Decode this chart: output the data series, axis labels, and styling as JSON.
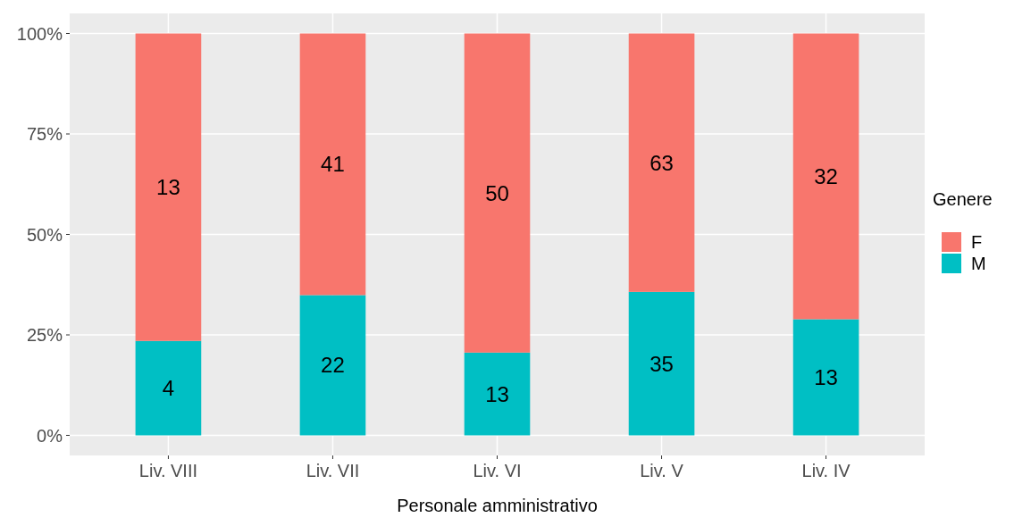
{
  "chart_data": {
    "type": "bar",
    "xlabel": "Personale amministrativo",
    "legend_title": "Genere",
    "categories": [
      "Liv. VIII",
      "Liv. VII",
      "Liv. VI",
      "Liv. V",
      "Liv. IV"
    ],
    "series": [
      {
        "name": "M",
        "color": "#00bfc4",
        "values": [
          23.5,
          34.9,
          20.6,
          35.7,
          28.9
        ]
      },
      {
        "name": "F",
        "color": "#f8766d",
        "values": [
          76.5,
          65.1,
          79.4,
          64.3,
          71.1
        ]
      }
    ],
    "annotations": [
      "4",
      "22",
      "13",
      "35",
      "13",
      "13",
      "41",
      "50",
      "63",
      "32"
    ],
    "stacked": true,
    "ylim": [
      -5,
      105
    ],
    "yticks": [
      {
        "value": 0,
        "label": "0%"
      },
      {
        "value": 25,
        "label": "25%"
      },
      {
        "value": 50,
        "label": "50%"
      },
      {
        "value": 75,
        "label": "75%"
      },
      {
        "value": 100,
        "label": "100%"
      }
    ],
    "grid": true,
    "legend": "right"
  }
}
